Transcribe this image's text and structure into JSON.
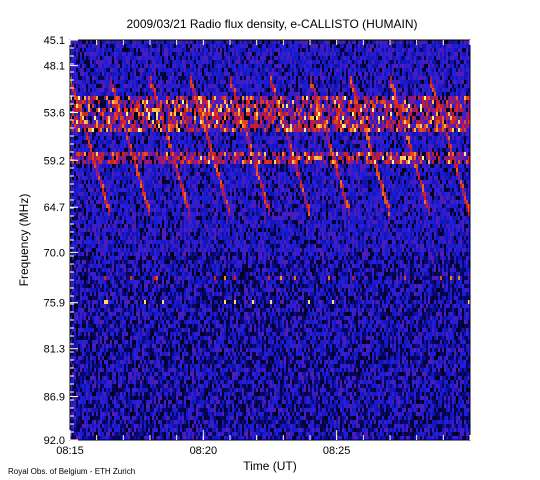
{
  "chart_data": {
    "type": "heatmap",
    "title": "2009/03/21  Radio flux density, e-CALLISTO (HUMAIN)",
    "xlabel": "Time (UT)",
    "ylabel": "Frequency (MHz)",
    "credit": "Royal Obs. of Belgium - ETH Zurich",
    "x_range": [
      "08:15",
      "08:30"
    ],
    "x_tick_labels": [
      "08:15",
      "08:20",
      "08:25"
    ],
    "y_range": [
      45.1,
      92.0
    ],
    "y_reversed": true,
    "y_tick_labels": [
      "45.1",
      "48.1",
      "53.6",
      "59.2",
      "64.7",
      "70.0",
      "75.9",
      "81.3",
      "86.9",
      "92.0"
    ],
    "colormap": [
      "#000000",
      "#0a0a8c",
      "#1e1edc",
      "#7a1a9a",
      "#d21e1e",
      "#ff8c1e",
      "#ffff8c"
    ],
    "features": {
      "bright_bands_mhz": [
        [
          51.5,
          56.0
        ],
        [
          58.3,
          59.8
        ]
      ],
      "drifting_features_mhz": [
        49.5,
        65.5
      ],
      "spike_row_mhz": 75.9,
      "spike_row_upper_mhz": 73.2
    }
  }
}
